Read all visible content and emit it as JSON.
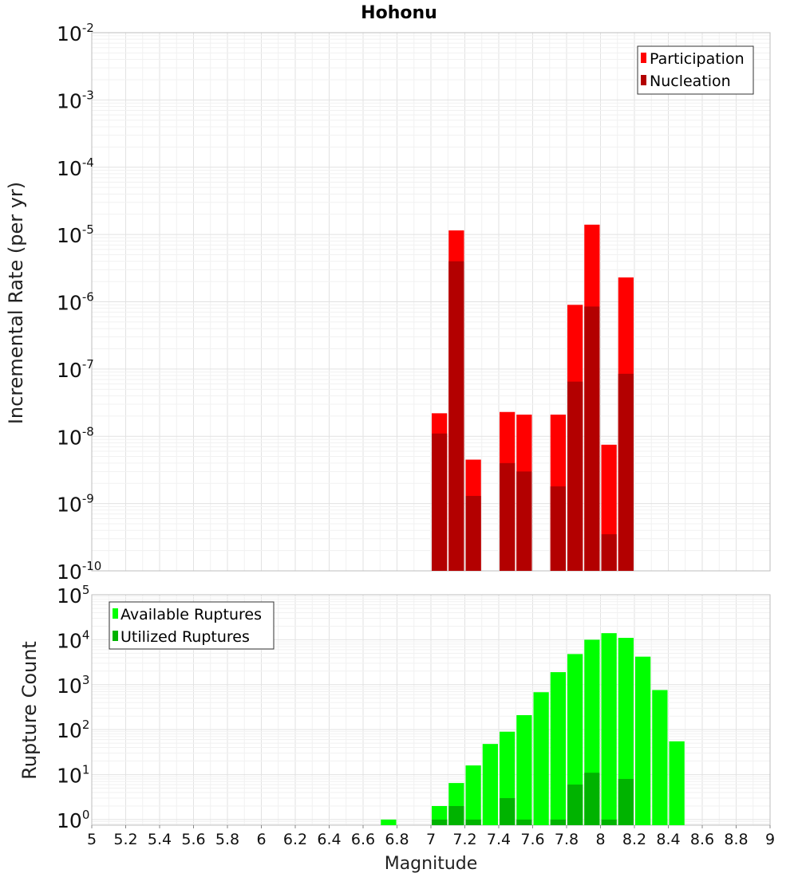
{
  "chart_data": [
    {
      "type": "bar",
      "title": "Hohonu",
      "xlabel": "",
      "ylabel": "Incremental Rate (per yr)",
      "xlim": [
        5,
        9
      ],
      "ylim": [
        1e-10,
        0.01
      ],
      "yscale": "log",
      "ytick_exponents": [
        "-10",
        "-9",
        "-8",
        "-7",
        "-6",
        "-5",
        "-4",
        "-3",
        "-2"
      ],
      "grid": true,
      "legend_position": "top-right",
      "bar_width": 0.1,
      "series": [
        {
          "name": "Participation",
          "color": "#ff0000",
          "x": [
            7.05,
            7.15,
            7.25,
            7.45,
            7.55,
            7.75,
            7.85,
            7.95,
            8.05,
            8.15
          ],
          "values": [
            2.2e-08,
            1.15e-05,
            4.5e-09,
            2.3e-08,
            2.1e-08,
            2.1e-08,
            9e-07,
            1.4e-05,
            7.5e-09,
            2.3e-06
          ]
        },
        {
          "name": "Nucleation",
          "color": "#b30000",
          "x": [
            7.05,
            7.15,
            7.25,
            7.45,
            7.55,
            7.75,
            7.85,
            7.95,
            8.05,
            8.15
          ],
          "values": [
            1.1e-08,
            4e-06,
            1.3e-09,
            4e-09,
            3e-09,
            1.8e-09,
            6.5e-08,
            8.5e-07,
            3.5e-10,
            8.5e-08
          ]
        }
      ]
    },
    {
      "type": "bar",
      "title": "",
      "xlabel": "Magnitude",
      "ylabel": "Rupture Count",
      "xlim": [
        5,
        9
      ],
      "ylim": [
        0.75,
        100000.0
      ],
      "yscale": "log",
      "ytick_exponents": [
        "0",
        "1",
        "2",
        "3",
        "4",
        "5"
      ],
      "x_ticks": [
        "5",
        "5.2",
        "5.4",
        "5.6",
        "5.8",
        "6",
        "6.2",
        "6.4",
        "6.6",
        "6.8",
        "7",
        "7.2",
        "7.4",
        "7.6",
        "7.8",
        "8",
        "8.2",
        "8.4",
        "8.6",
        "8.8",
        "9"
      ],
      "grid": true,
      "legend_position": "top-left",
      "bar_width": 0.1,
      "series": [
        {
          "name": "Available Ruptures",
          "color": "#00ff00",
          "x": [
            6.75,
            7.05,
            7.15,
            7.25,
            7.35,
            7.45,
            7.55,
            7.65,
            7.75,
            7.85,
            7.95,
            8.05,
            8.15,
            8.25,
            8.35,
            8.45
          ],
          "values": [
            1,
            2,
            6.5,
            16,
            48,
            90,
            210,
            680,
            1900,
            4800,
            10000,
            14000,
            11000,
            4200,
            760,
            55
          ]
        },
        {
          "name": "Utilized Ruptures",
          "color": "#00b300",
          "x": [
            7.05,
            7.15,
            7.25,
            7.45,
            7.55,
            7.75,
            7.85,
            7.95,
            8.05,
            8.15
          ],
          "values": [
            1,
            2,
            1,
            3,
            1,
            1,
            6,
            11,
            1,
            8
          ]
        }
      ]
    }
  ]
}
